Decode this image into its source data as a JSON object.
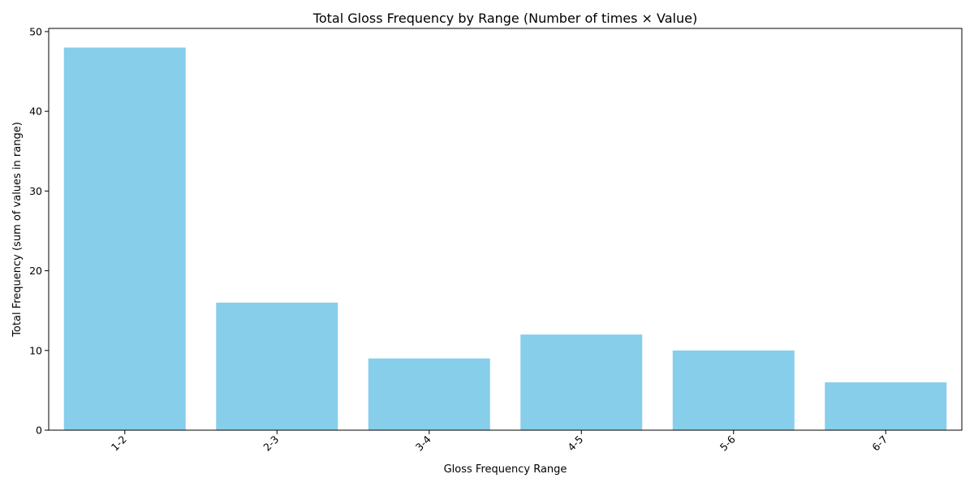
{
  "chart_data": {
    "type": "bar",
    "title": "Total Gloss Frequency by Range (Number of times × Value)",
    "xlabel": "Gloss Frequency Range",
    "ylabel": "Total Frequency (sum of values in range)",
    "categories": [
      "1-2",
      "2-3",
      "3-4",
      "4-5",
      "5-6",
      "6-7"
    ],
    "values": [
      48,
      16,
      9,
      12,
      10,
      6
    ],
    "ylim": [
      0,
      50.4
    ],
    "yticks": [
      0,
      10,
      20,
      30,
      40,
      50
    ],
    "bar_color": "#87CEEB",
    "grid": false,
    "legend": "none",
    "xtick_rotation": -45
  }
}
